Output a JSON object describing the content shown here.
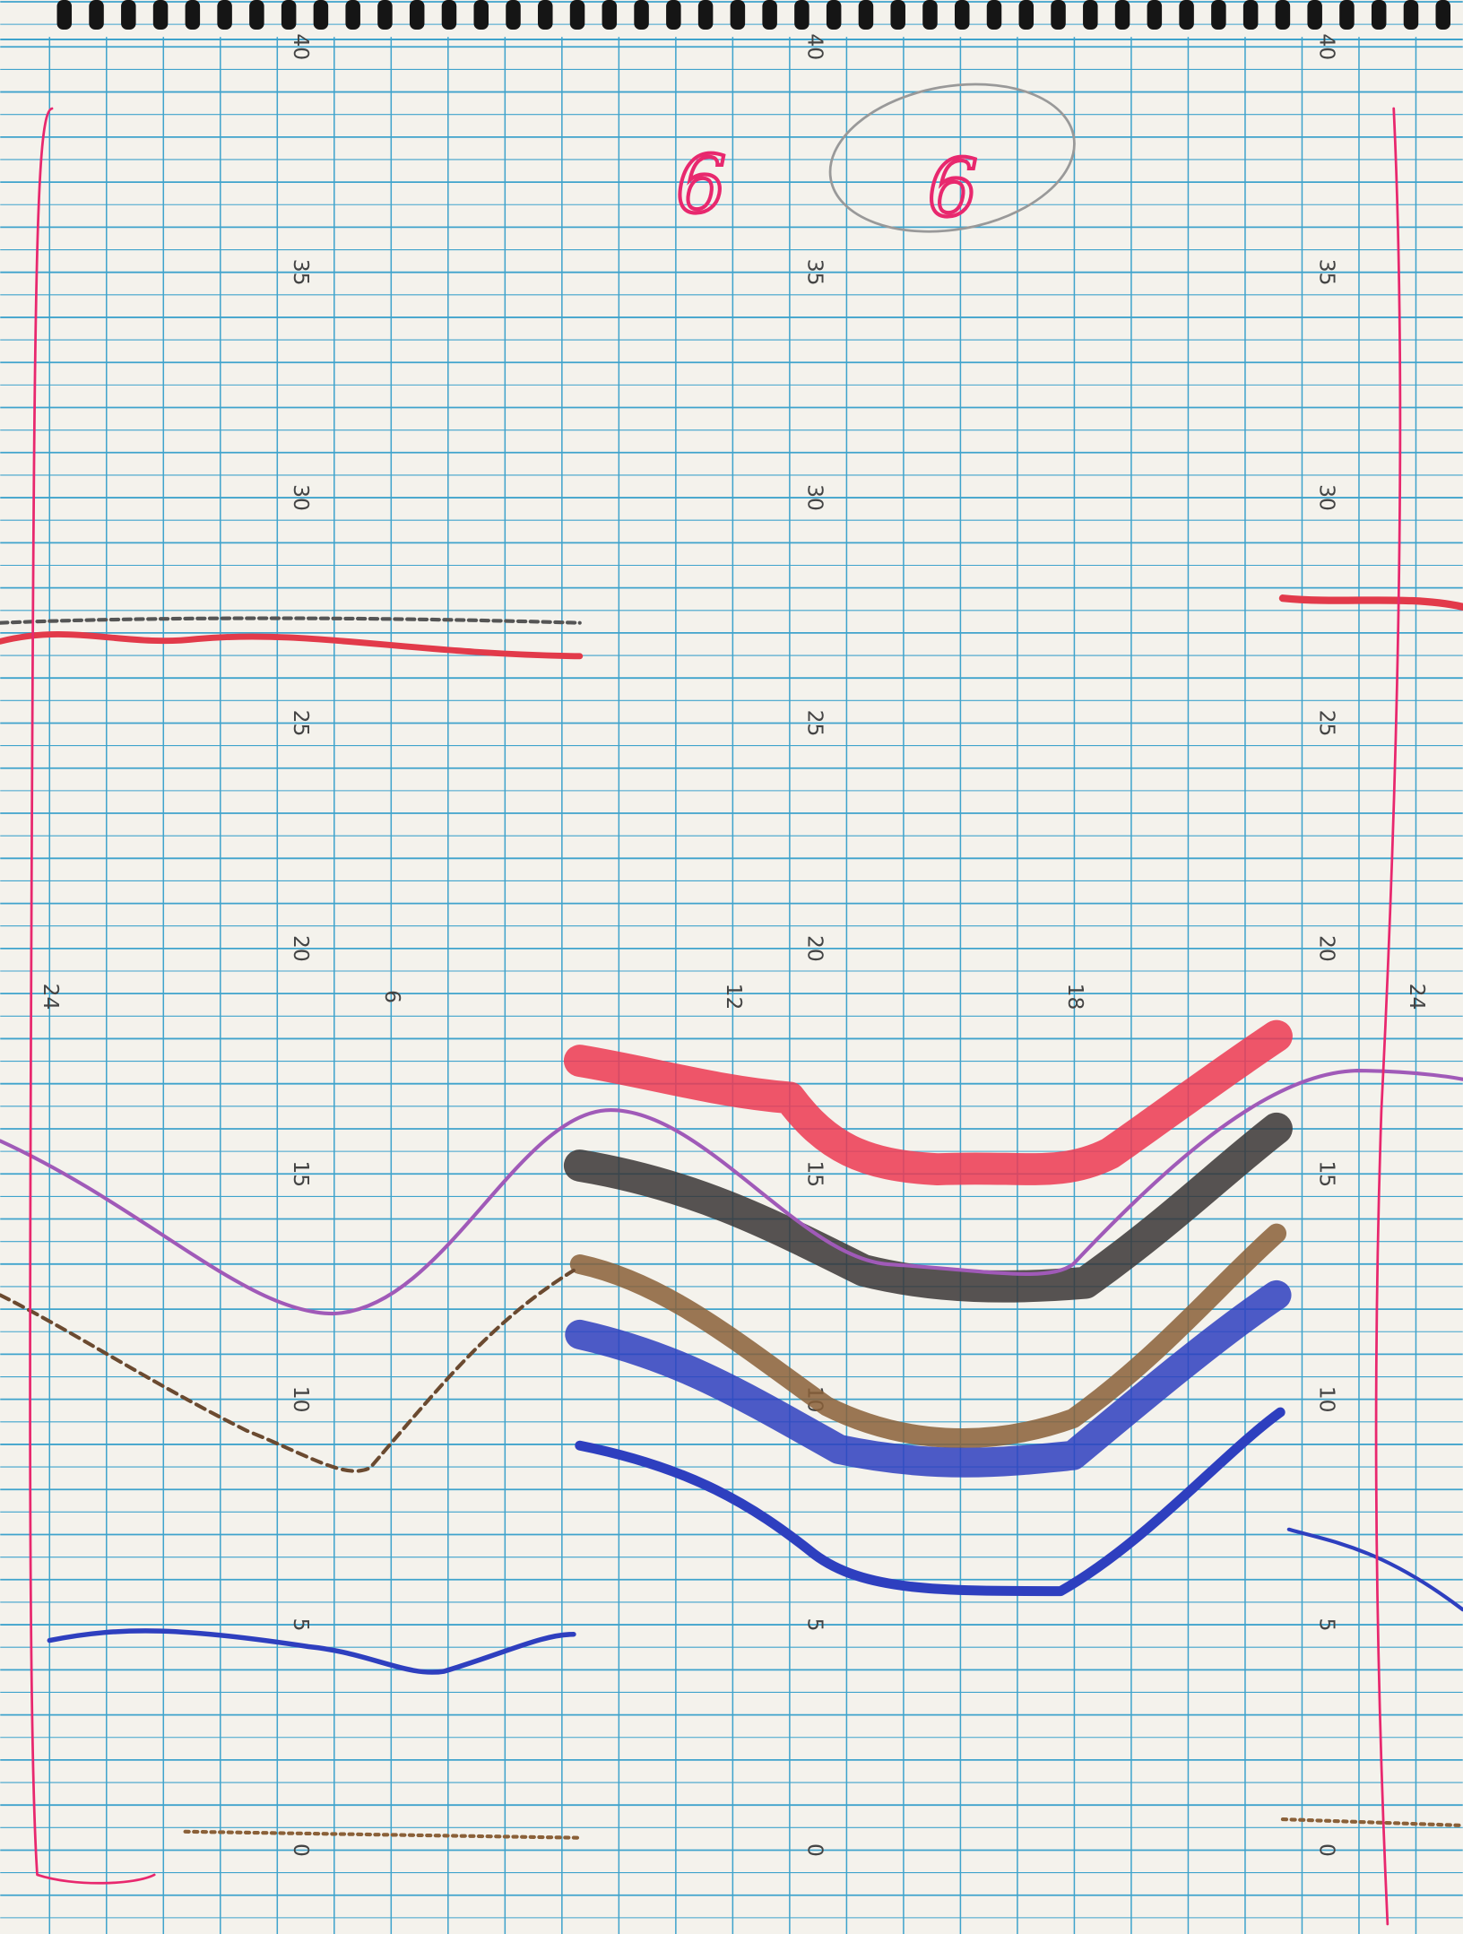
{
  "scale_labels": [
    40,
    35,
    30,
    25,
    20,
    15,
    10,
    5,
    0
  ],
  "hour_labels": [
    "24",
    "6",
    "12",
    "18",
    "24"
  ],
  "annotations": [
    "6",
    "6"
  ]
}
